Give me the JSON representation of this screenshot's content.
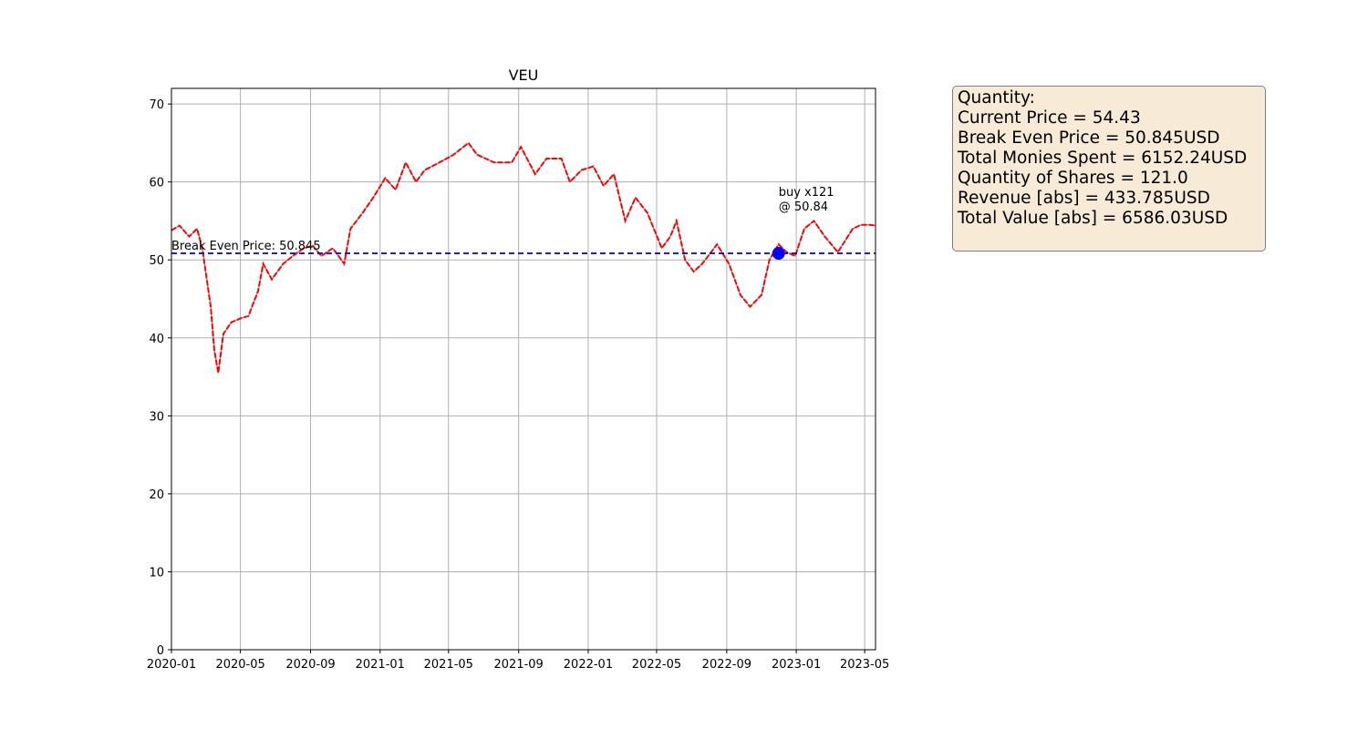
{
  "chart_data": {
    "type": "line",
    "title": "VEU",
    "xlabel": "",
    "ylabel": "",
    "ylim": [
      0,
      72
    ],
    "xlim": [
      "2020-01-01",
      "2023-05-20"
    ],
    "grid": true,
    "x_tick_labels": [
      "2020-01",
      "2020-05",
      "2020-09",
      "2021-01",
      "2021-05",
      "2021-09",
      "2022-01",
      "2022-05",
      "2022-09",
      "2023-01",
      "2023-05"
    ],
    "y_tick_labels": [
      "0",
      "10",
      "20",
      "30",
      "40",
      "50",
      "60",
      "70"
    ],
    "series": [
      {
        "color": "#ff0000",
        "style": "dashed",
        "points": [
          [
            "2020-01-01",
            53.8
          ],
          [
            "2020-01-15",
            54.4
          ],
          [
            "2020-02-01",
            53.0
          ],
          [
            "2020-02-15",
            54.0
          ],
          [
            "2020-02-24",
            51.5
          ],
          [
            "2020-03-02",
            48.0
          ],
          [
            "2020-03-10",
            44.0
          ],
          [
            "2020-03-16",
            38.5
          ],
          [
            "2020-03-23",
            35.5
          ],
          [
            "2020-04-01",
            40.5
          ],
          [
            "2020-04-15",
            42.0
          ],
          [
            "2020-05-01",
            42.5
          ],
          [
            "2020-05-15",
            42.8
          ],
          [
            "2020-06-01",
            46.0
          ],
          [
            "2020-06-10",
            49.5
          ],
          [
            "2020-06-25",
            47.5
          ],
          [
            "2020-07-15",
            49.5
          ],
          [
            "2020-08-01",
            50.5
          ],
          [
            "2020-08-20",
            51.5
          ],
          [
            "2020-09-05",
            51.8
          ],
          [
            "2020-09-20",
            50.5
          ],
          [
            "2020-10-10",
            51.5
          ],
          [
            "2020-10-30",
            49.5
          ],
          [
            "2020-11-10",
            54.0
          ],
          [
            "2020-12-01",
            56.0
          ],
          [
            "2020-12-20",
            58.0
          ],
          [
            "2021-01-10",
            60.5
          ],
          [
            "2021-01-28",
            59.0
          ],
          [
            "2021-02-15",
            62.5
          ],
          [
            "2021-03-05",
            60.0
          ],
          [
            "2021-03-20",
            61.5
          ],
          [
            "2021-04-15",
            62.5
          ],
          [
            "2021-05-10",
            63.5
          ],
          [
            "2021-06-05",
            65.0
          ],
          [
            "2021-06-20",
            63.5
          ],
          [
            "2021-07-20",
            62.5
          ],
          [
            "2021-08-20",
            62.5
          ],
          [
            "2021-09-05",
            64.5
          ],
          [
            "2021-09-30",
            61.0
          ],
          [
            "2021-10-20",
            63.0
          ],
          [
            "2021-11-15",
            63.0
          ],
          [
            "2021-11-30",
            60.0
          ],
          [
            "2021-12-20",
            61.5
          ],
          [
            "2022-01-10",
            62.0
          ],
          [
            "2022-01-28",
            59.5
          ],
          [
            "2022-02-15",
            61.0
          ],
          [
            "2022-03-07",
            55.0
          ],
          [
            "2022-03-25",
            58.0
          ],
          [
            "2022-04-15",
            56.0
          ],
          [
            "2022-05-10",
            51.5
          ],
          [
            "2022-05-25",
            53.0
          ],
          [
            "2022-06-05",
            55.0
          ],
          [
            "2022-06-20",
            50.0
          ],
          [
            "2022-07-05",
            48.5
          ],
          [
            "2022-07-20",
            49.5
          ],
          [
            "2022-08-15",
            52.0
          ],
          [
            "2022-09-05",
            49.5
          ],
          [
            "2022-09-25",
            45.5
          ],
          [
            "2022-10-12",
            44.0
          ],
          [
            "2022-11-01",
            45.5
          ],
          [
            "2022-11-15",
            50.0
          ],
          [
            "2022-12-01",
            52.0
          ],
          [
            "2022-12-15",
            51.0
          ],
          [
            "2022-12-30",
            50.5
          ],
          [
            "2023-01-15",
            54.0
          ],
          [
            "2023-02-01",
            55.0
          ],
          [
            "2023-02-20",
            53.0
          ],
          [
            "2023-03-15",
            51.0
          ],
          [
            "2023-04-10",
            54.0
          ],
          [
            "2023-04-25",
            54.5
          ],
          [
            "2023-05-10",
            54.5
          ],
          [
            "2023-05-20",
            54.4
          ]
        ]
      }
    ],
    "break_even": {
      "value": 50.845,
      "label": "Break Even Price: 50.845",
      "color": "#0000cc",
      "style": "dashed"
    },
    "buy_marker": {
      "date": "2022-12-01",
      "value": 50.84,
      "color": "#0000ff",
      "label_line1": "buy x121",
      "label_line2": "@ 50.84"
    }
  },
  "info_box": {
    "lines": [
      "Quantity:",
      "Current Price = 54.43",
      "Break Even Price = 50.845USD",
      "Total Monies Spent = 6152.24USD",
      "Quantity of Shares = 121.0",
      "Revenue [abs] = 433.785USD",
      "Total Value [abs] = 6586.03USD"
    ]
  }
}
